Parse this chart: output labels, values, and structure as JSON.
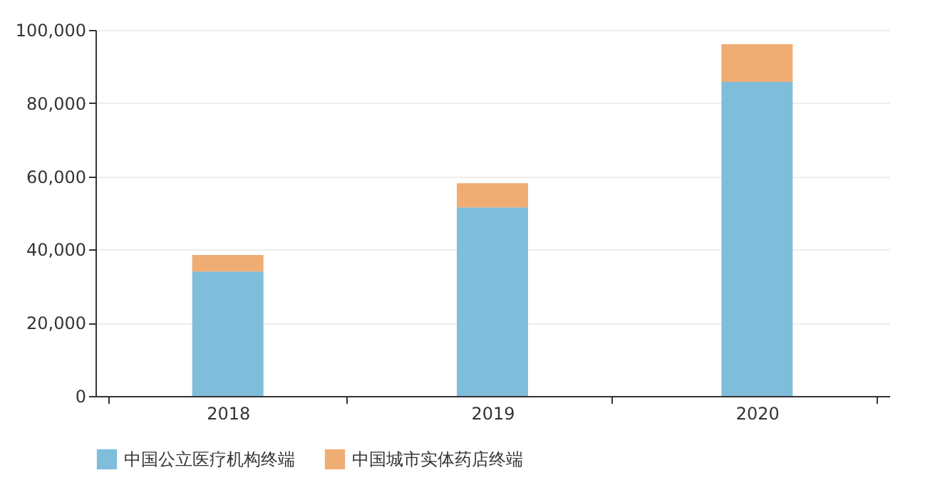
{
  "chart_data": {
    "type": "bar",
    "stacked": true,
    "categories": [
      "2018",
      "2019",
      "2020"
    ],
    "series": [
      {
        "name": "中国公立医疗机构终端",
        "color": "#7fbedb",
        "values": [
          34000,
          51500,
          85800
        ]
      },
      {
        "name": "中国城市实体药店终端",
        "color": "#efad74",
        "values": [
          4500,
          6600,
          10300
        ]
      }
    ],
    "ylim": [
      0,
      100000
    ],
    "yticks": [
      0,
      {
        "value": 20000,
        "label": "20,000"
      },
      {
        "value": 40000,
        "label": "40,000"
      },
      {
        "value": 60000,
        "label": "60,000"
      },
      {
        "value": 80000,
        "label": "80,000"
      },
      {
        "value": 100000,
        "label": "100,000"
      }
    ],
    "grid": "y",
    "legend": "bottom"
  }
}
